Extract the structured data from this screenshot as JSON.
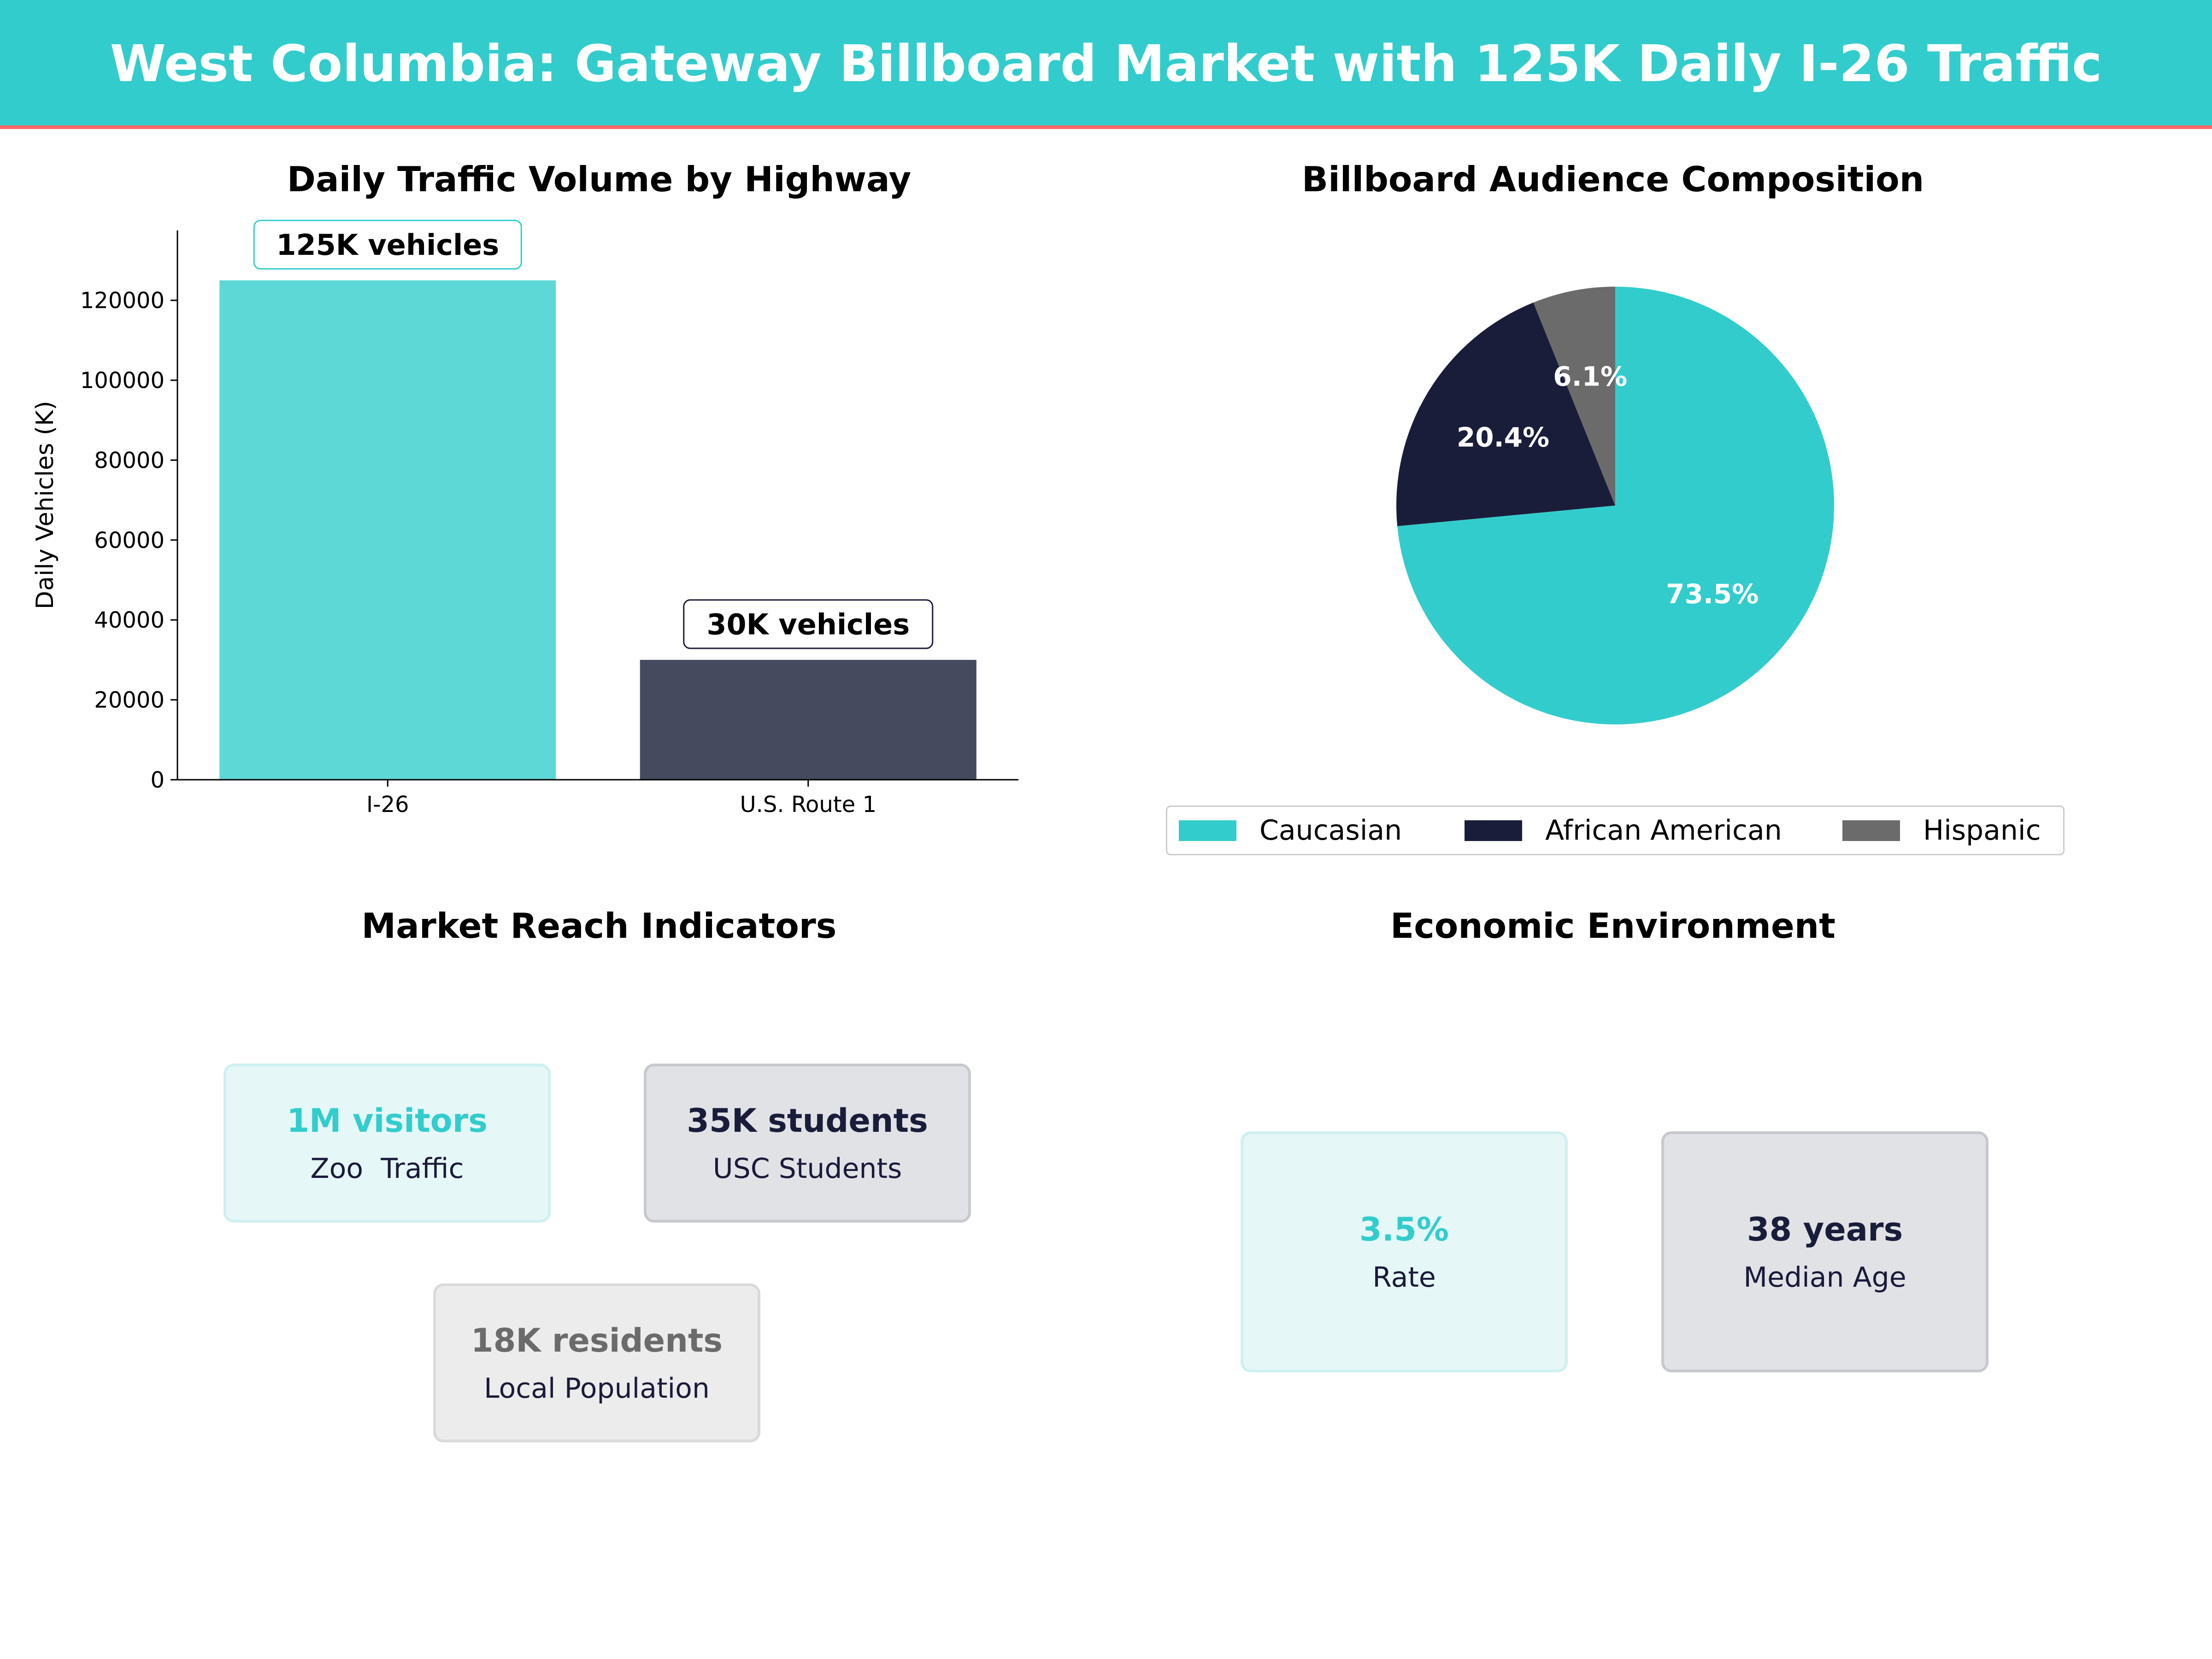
{
  "header": {
    "title": "West Columbia: Gateway Billboard Market with 125K Daily I-26 Traffic",
    "bg_color": "#33cccc",
    "accent_line_color": "#ff6b6b"
  },
  "chart_data": [
    {
      "type": "bar",
      "title": "Daily Traffic Volume by Highway",
      "xlabel": "",
      "ylabel": "Daily Vehicles (K)",
      "categories": [
        "I-26",
        "U.S. Route 1"
      ],
      "values": [
        125000,
        30000
      ],
      "data_labels": [
        "125K vehicles",
        "30K vehicles"
      ],
      "colors": [
        "#5dd8d6",
        "#454a5f"
      ],
      "label_border_colors": [
        "#33cccc",
        "#1a1a3a"
      ],
      "ylim": [
        0,
        137500
      ],
      "yticks": [
        0,
        20000,
        40000,
        60000,
        80000,
        100000,
        120000
      ],
      "grid": false
    },
    {
      "type": "pie",
      "title": "Billboard Audience Composition",
      "labels": [
        "Caucasian",
        "African American",
        "Hispanic"
      ],
      "values": [
        73.5,
        20.4,
        6.1
      ],
      "value_labels": [
        "73.5%",
        "20.4%",
        "6.1%"
      ],
      "colors": [
        "#33cccc",
        "#1a1d3a",
        "#6b6b6b"
      ],
      "legend_position": "bottom"
    }
  ],
  "market_reach": {
    "title": "Market Reach Indicators",
    "cards": [
      {
        "value": "1M visitors",
        "label": "Zoo  Traffic",
        "value_color": "#33cccc",
        "bg": "#e5f7f7",
        "border": "#d0f0f0"
      },
      {
        "value": "35K students",
        "label": "USC Students",
        "value_color": "#1a1d3a",
        "bg": "#e1e2e6",
        "border": "#c8c9ce"
      },
      {
        "value": "18K residents",
        "label": "Local Population",
        "value_color": "#6b6b6b",
        "bg": "#ececec",
        "border": "#dadada"
      }
    ]
  },
  "economic": {
    "title": "Economic Environment",
    "cards": [
      {
        "value": "3.5%",
        "label": "Rate",
        "value_color": "#33cccc",
        "bg": "#e5f7f7",
        "border": "#d0f0f0"
      },
      {
        "value": "38 years",
        "label": "Median Age",
        "value_color": "#1a1d3a",
        "bg": "#e1e2e6",
        "border": "#c8c9ce"
      }
    ]
  }
}
